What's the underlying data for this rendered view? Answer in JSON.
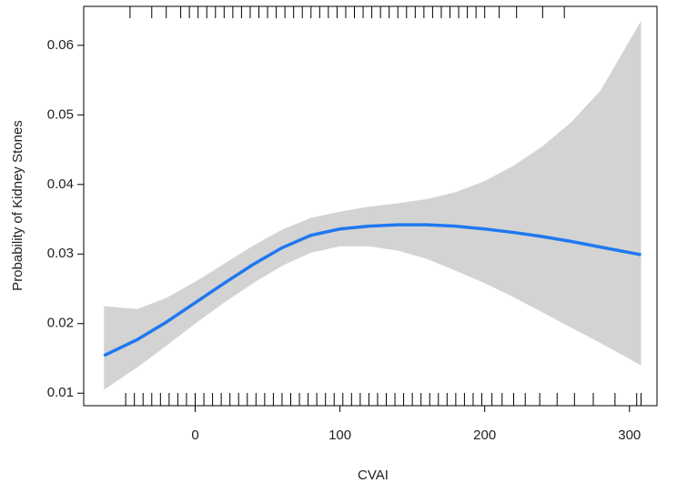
{
  "chart_data": {
    "type": "line",
    "xlabel": "CVAI",
    "ylabel": "Probability of Kidney Stones",
    "x": [
      -63,
      -40,
      -20,
      0,
      20,
      40,
      60,
      80,
      100,
      120,
      140,
      160,
      180,
      200,
      220,
      240,
      260,
      280,
      308
    ],
    "series": [
      {
        "color": "#1f78f0",
        "values": [
          0.0154,
          0.0177,
          0.0202,
          0.023,
          0.0258,
          0.0285,
          0.0309,
          0.0327,
          0.0336,
          0.034,
          0.0342,
          0.0342,
          0.034,
          0.0336,
          0.0331,
          0.0325,
          0.0318,
          0.031,
          0.0299
        ]
      }
    ],
    "band": {
      "color": "#d3d3d3",
      "lower": [
        0.0105,
        0.0137,
        0.0168,
        0.02,
        0.023,
        0.0258,
        0.0283,
        0.0302,
        0.0311,
        0.0311,
        0.0305,
        0.0293,
        0.0276,
        0.0258,
        0.0238,
        0.0216,
        0.0194,
        0.0172,
        0.014
      ],
      "upper": [
        0.0225,
        0.0221,
        0.0237,
        0.026,
        0.0286,
        0.0312,
        0.0335,
        0.0352,
        0.0361,
        0.0368,
        0.0373,
        0.0379,
        0.0389,
        0.0405,
        0.0427,
        0.0455,
        0.049,
        0.0535,
        0.0635
      ]
    },
    "rug_top": [
      -45,
      -30,
      -20,
      -10,
      -4,
      2,
      8,
      14,
      20,
      26,
      32,
      38,
      44,
      50,
      56,
      62,
      68,
      74,
      80,
      86,
      92,
      98,
      104,
      110,
      116,
      122,
      128,
      134,
      140,
      146,
      152,
      158,
      164,
      170,
      176,
      182,
      188,
      194,
      200,
      210,
      222,
      240,
      255
    ],
    "rug_bottom": [
      -48,
      -42,
      -36,
      -30,
      -24,
      -18,
      -12,
      -6,
      0,
      6,
      12,
      18,
      24,
      30,
      36,
      42,
      48,
      54,
      60,
      66,
      72,
      78,
      84,
      90,
      96,
      102,
      108,
      114,
      120,
      126,
      132,
      138,
      144,
      150,
      156,
      162,
      168,
      174,
      180,
      186,
      192,
      198,
      205,
      212,
      220,
      228,
      238,
      250,
      262,
      275,
      290,
      305,
      308
    ],
    "xlim": [
      -77,
      319
    ],
    "ylim": [
      0.0082,
      0.0656
    ],
    "xticks": [
      0,
      100,
      200,
      300
    ],
    "yticks": [
      0.01,
      0.02,
      0.03,
      0.04,
      0.05,
      0.06
    ]
  }
}
